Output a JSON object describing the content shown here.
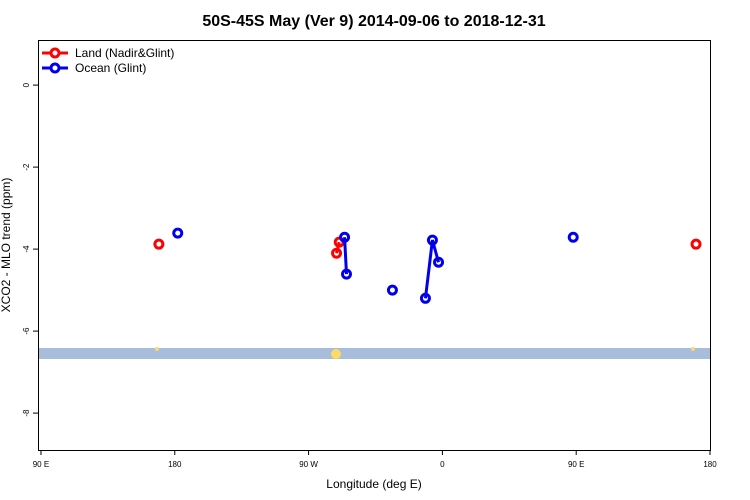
{
  "chart_data": {
    "type": "line",
    "title": "50S-45S May (Ver 9)   2014-09-06 to 2018-12-31",
    "x_label": "Longitude (deg E)",
    "y_label": "XCO2 - MLO trend (ppm)",
    "xlim": [
      88,
      540
    ],
    "ylim": [
      -8.9,
      1.1
    ],
    "xticks": [
      {
        "value": 90,
        "label": "90 E"
      },
      180,
      {
        "value": 270,
        "label": "90 W"
      },
      {
        "value": 360,
        "label": "0"
      },
      {
        "value": 450,
        "label": "90 E"
      },
      {
        "value": 540,
        "label": "180"
      }
    ],
    "yticks": [
      0,
      -2,
      -4,
      -6,
      -8
    ],
    "legend": "top-left",
    "series": [
      {
        "name": "Land (Nadir&Glint)",
        "color": "#ff0000",
        "x": [
          169.3,
          null,
          288.8,
          290.6,
          null,
          530.6
        ],
        "values": [
          -3.88,
          null,
          -4.1,
          -3.83,
          null,
          -3.88
        ]
      },
      {
        "name": "Ocean (Glint)",
        "color": "#0000ee",
        "x": [
          182,
          null,
          294.2,
          295.5,
          null,
          326.4,
          null,
          348.6,
          353.3,
          357.4,
          null,
          448
        ],
        "values": [
          -3.61,
          null,
          -3.71,
          -4.61,
          null,
          -5.0,
          null,
          -5.2,
          -3.78,
          -4.32,
          null,
          -3.71
        ]
      }
    ]
  }
}
